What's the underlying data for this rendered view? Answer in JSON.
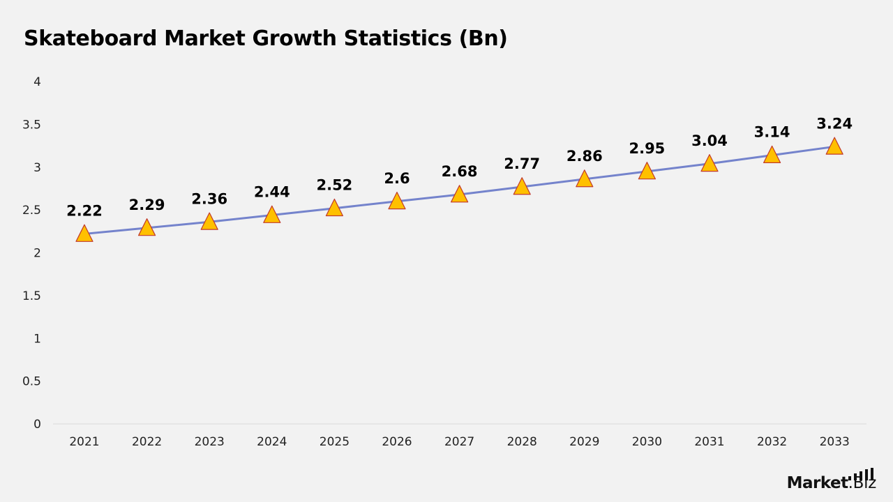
{
  "title": "Skateboard Market Growth Statistics (Bn)",
  "brand": {
    "main": "Market",
    "sub": ".Biz"
  },
  "colors": {
    "line": "#7483cc",
    "marker_fill": "#ffc000",
    "marker_stroke": "#c0392b",
    "axis": "#d9d9d9",
    "background": "#f2f2f2"
  },
  "chart_data": {
    "type": "line",
    "title": "Skateboard Market Growth Statistics (Bn)",
    "xlabel": "",
    "ylabel": "",
    "categories": [
      "2021",
      "2022",
      "2023",
      "2024",
      "2025",
      "2026",
      "2027",
      "2028",
      "2029",
      "2030",
      "2031",
      "2032",
      "2033"
    ],
    "series": [
      {
        "values": [
          2.22,
          2.29,
          2.36,
          2.44,
          2.52,
          2.6,
          2.68,
          2.77,
          2.86,
          2.95,
          3.04,
          3.14,
          3.24
        ],
        "labels": [
          "2.22",
          "2.29",
          "2.36",
          "2.44",
          "2.52",
          "2.6",
          "2.68",
          "2.77",
          "2.86",
          "2.95",
          "3.04",
          "3.14",
          "3.24"
        ],
        "marker": "triangle"
      }
    ],
    "ylim": [
      0,
      4
    ],
    "yticks": [
      "0",
      "0.5",
      "1",
      "1.5",
      "2",
      "2.5",
      "3",
      "3.5",
      "4"
    ],
    "grid": false,
    "legend": "none"
  }
}
